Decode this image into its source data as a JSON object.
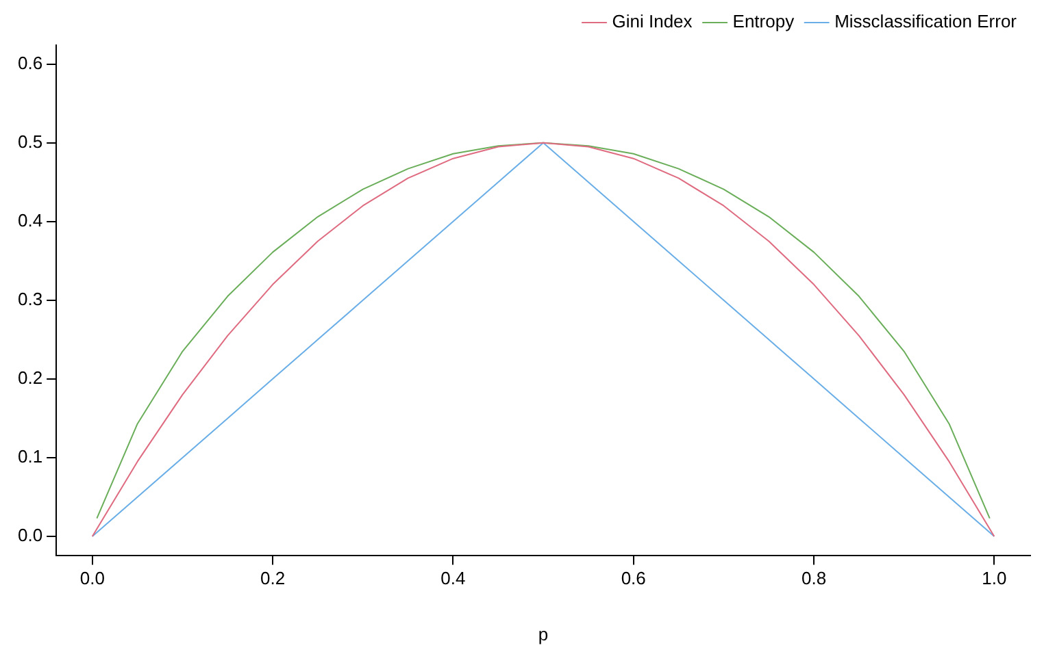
{
  "chart_data": {
    "type": "line",
    "xlabel": "p",
    "x": [
      0,
      0.05,
      0.1,
      0.15,
      0.2,
      0.25,
      0.3,
      0.35,
      0.4,
      0.45,
      0.5,
      0.55,
      0.6,
      0.65,
      0.7,
      0.75,
      0.8,
      0.85,
      0.9,
      0.95,
      1
    ],
    "series": [
      {
        "name": "Gini Index",
        "color": "#df6b80",
        "values": [
          0,
          0.095,
          0.18,
          0.255,
          0.32,
          0.375,
          0.42,
          0.455,
          0.48,
          0.495,
          0.5,
          0.495,
          0.48,
          0.455,
          0.42,
          0.375,
          0.32,
          0.255,
          0.18,
          0.095,
          0
        ]
      },
      {
        "name": "Entropy",
        "color": "#6aae5a",
        "x": [
          0.005,
          0.05,
          0.1,
          0.15,
          0.2,
          0.25,
          0.3,
          0.35,
          0.4,
          0.45,
          0.5,
          0.55,
          0.6,
          0.65,
          0.7,
          0.75,
          0.8,
          0.85,
          0.9,
          0.95,
          0.995
        ],
        "values": [
          0.023,
          0.143,
          0.235,
          0.305,
          0.361,
          0.406,
          0.441,
          0.467,
          0.486,
          0.496,
          0.5,
          0.496,
          0.486,
          0.467,
          0.441,
          0.406,
          0.361,
          0.305,
          0.235,
          0.143,
          0.023
        ]
      },
      {
        "name": "Missclassification Error",
        "color": "#6aaee8",
        "values": [
          0,
          0.05,
          0.1,
          0.15,
          0.2,
          0.25,
          0.3,
          0.35,
          0.4,
          0.45,
          0.5,
          0.45,
          0.4,
          0.35,
          0.3,
          0.25,
          0.2,
          0.15,
          0.1,
          0.05,
          0
        ]
      }
    ],
    "xlim": [
      -0.04,
      1.04
    ],
    "xticks": [
      {
        "value": 0,
        "label": "0.0"
      },
      0.2,
      0.4,
      0.6,
      0.8,
      {
        "value": 1,
        "label": "1.0"
      }
    ],
    "ylim": [
      -0.024,
      0.624
    ],
    "yticks": [
      {
        "value": 0,
        "label": "0.0"
      },
      0.1,
      0.2,
      0.3,
      0.4,
      0.5,
      0.6
    ],
    "grid": false,
    "legend": "top right",
    "line_style": "solid",
    "marker": "none"
  }
}
